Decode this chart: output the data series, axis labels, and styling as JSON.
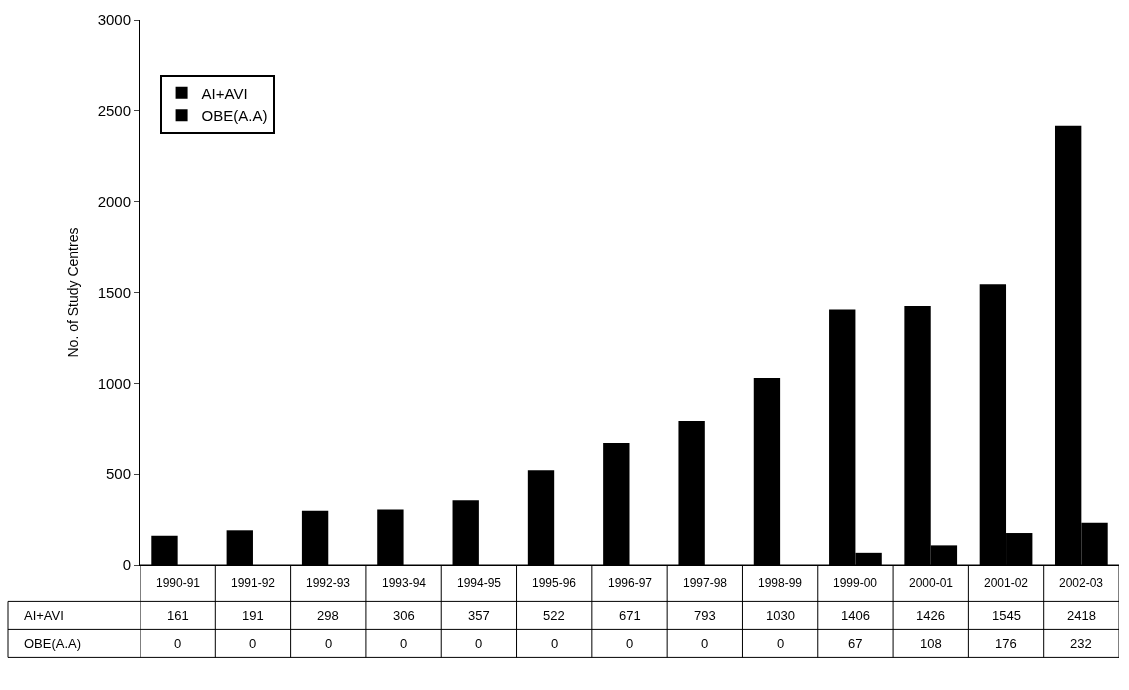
{
  "chart_data": {
    "type": "bar",
    "ylabel": "No. of Study Centres",
    "categories": [
      "1990-91",
      "1991-92",
      "1992-93",
      "1993-94",
      "1994-95",
      "1995-96",
      "1996-97",
      "1997-98",
      "1998-99",
      "1999-00",
      "2000-01",
      "2001-02",
      "2002-03"
    ],
    "series": [
      {
        "name": "AI+AVI",
        "color": "#000000",
        "values": [
          161,
          191,
          298,
          306,
          357,
          522,
          671,
          793,
          1030,
          1406,
          1426,
          1545,
          2418
        ]
      },
      {
        "name": "OBE(A.A)",
        "color": "#000000",
        "values": [
          0,
          0,
          0,
          0,
          0,
          0,
          0,
          0,
          0,
          67,
          108,
          176,
          232
        ]
      }
    ],
    "ylim": [
      0,
      3000
    ],
    "yticks": [
      0,
      500,
      1000,
      1500,
      2000,
      2500,
      3000
    ],
    "legend": "top left",
    "data_labels": true
  }
}
